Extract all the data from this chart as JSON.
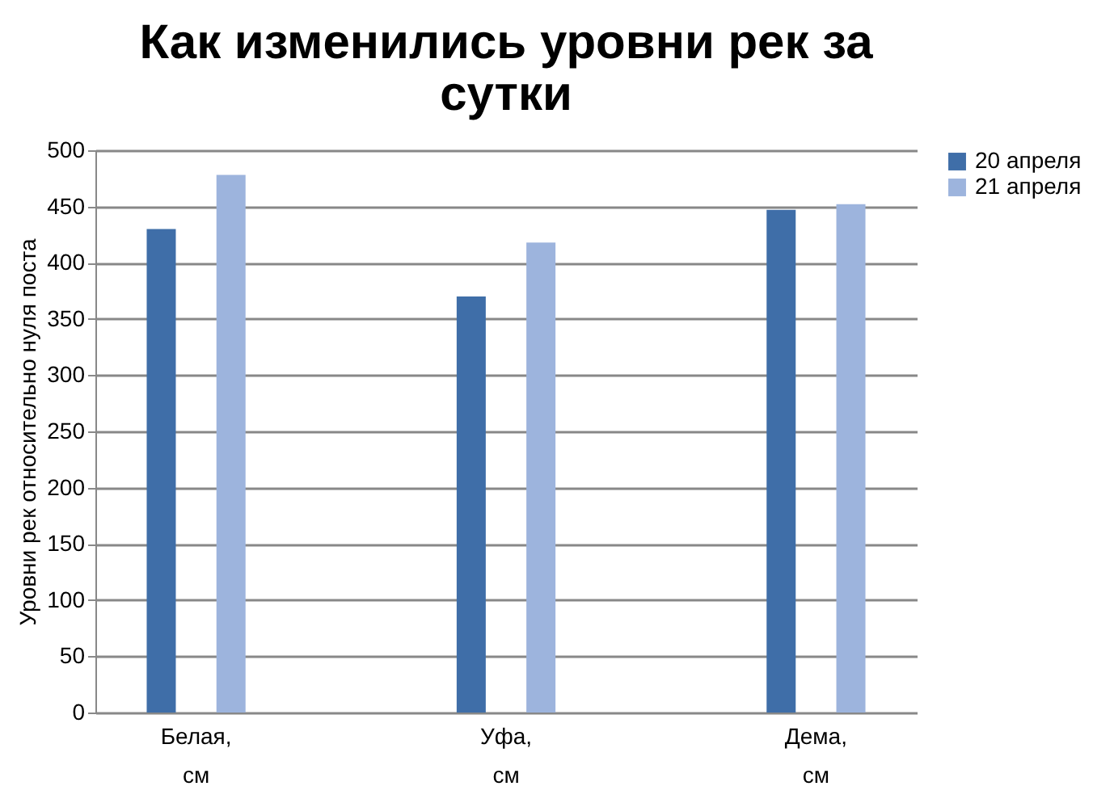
{
  "chart_data": {
    "type": "bar",
    "title": "Как изменились уровни рек за сутки",
    "ylabel": "Уровни рек относительно нуля поста",
    "categories": [
      "Белая, см",
      "Уфа, см",
      "Дема, см"
    ],
    "series": [
      {
        "name": "20 апреля",
        "color": "#3f6ea8",
        "values": [
          430,
          370,
          447
        ]
      },
      {
        "name": "21 апреля",
        "color": "#9db4dd",
        "values": [
          478,
          418,
          452
        ]
      }
    ],
    "ylim": [
      0,
      500
    ],
    "yticks": [
      0,
      50,
      100,
      150,
      200,
      250,
      300,
      350,
      400,
      450,
      500
    ],
    "grid": "y",
    "legend": "right"
  }
}
